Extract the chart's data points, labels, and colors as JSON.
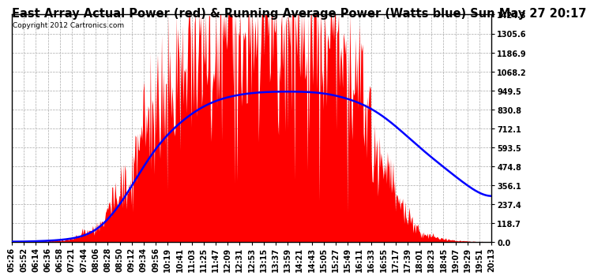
{
  "title": "East Array Actual Power (red) & Running Average Power (Watts blue) Sun May 27 20:17",
  "copyright": "Copyright 2012 Cartronics.com",
  "ylabel_values": [
    0.0,
    118.7,
    237.4,
    356.1,
    474.8,
    593.5,
    712.1,
    830.8,
    949.5,
    1068.2,
    1186.9,
    1305.6,
    1424.3
  ],
  "ymax": 1424.3,
  "background_color": "#ffffff",
  "plot_bg_color": "#ffffff",
  "grid_color": "#aaaaaa",
  "bar_color": "red",
  "avg_line_color": "blue",
  "title_fontsize": 10.5,
  "title_fontweight": "bold",
  "copyright_fontsize": 6.5,
  "tick_fontsize": 7.0,
  "x_tick_labels": [
    "05:26",
    "05:52",
    "06:14",
    "06:36",
    "06:58",
    "07:21",
    "07:44",
    "08:06",
    "08:28",
    "08:50",
    "09:12",
    "09:34",
    "09:56",
    "10:19",
    "10:41",
    "11:03",
    "11:25",
    "11:47",
    "12:09",
    "12:31",
    "12:53",
    "13:15",
    "13:37",
    "13:59",
    "14:21",
    "14:43",
    "15:05",
    "15:27",
    "15:49",
    "16:11",
    "16:33",
    "16:55",
    "17:17",
    "17:39",
    "18:01",
    "18:23",
    "18:45",
    "19:07",
    "19:29",
    "19:51",
    "20:13"
  ],
  "base_power": [
    2,
    3,
    5,
    8,
    12,
    18,
    60,
    80,
    200,
    350,
    500,
    700,
    850,
    950,
    1050,
    1150,
    1200,
    1280,
    1350,
    1380,
    1400,
    1410,
    1400,
    1380,
    1350,
    1300,
    1250,
    1180,
    1100,
    950,
    700,
    500,
    300,
    150,
    80,
    40,
    20,
    10,
    5,
    3,
    2
  ],
  "avg_power": [
    2,
    3,
    5,
    8,
    12,
    18,
    35,
    55,
    130,
    220,
    350,
    480,
    600,
    680,
    750,
    810,
    855,
    890,
    910,
    925,
    935,
    940,
    942,
    943,
    942,
    940,
    935,
    920,
    900,
    875,
    840,
    790,
    730,
    660,
    590,
    530,
    470,
    410,
    350,
    300,
    250
  ],
  "n_dense": 600,
  "noise_seed": 7,
  "noise_factor": 0.18,
  "spike_seed": 13,
  "spike_range": [
    0.65,
    1.35
  ]
}
